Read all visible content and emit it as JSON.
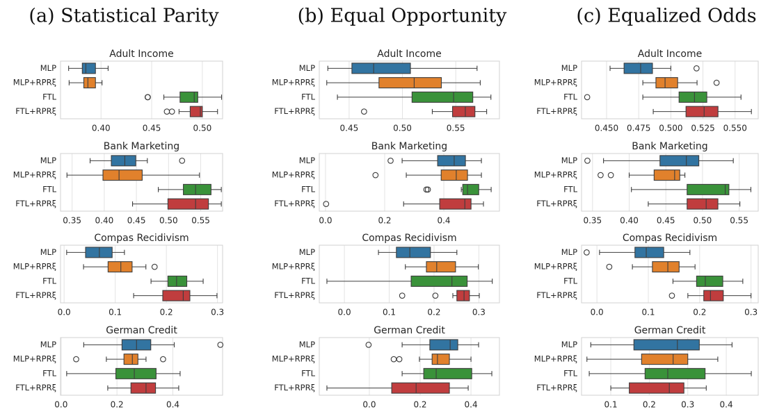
{
  "column_titles": [
    "(a) Statistical Parity",
    "(b) Equal Opportunity",
    "(c) Equalized Odds"
  ],
  "chart_data": [
    {
      "type": "box",
      "column": 0,
      "title": "Adult Income",
      "categories": [
        "MLP",
        "MLP+RPRξ",
        "FTL",
        "FTL+RPRξ"
      ],
      "colors": [
        "#3274a1",
        "#e1812c",
        "#3a923a",
        "#c03d3e"
      ],
      "grid": true,
      "xlim": [
        0.36,
        0.52
      ],
      "xticks": [
        {
          "value": 0.4,
          "label": "0.40"
        },
        0.45,
        {
          "value": 0.5,
          "label": "0.50"
        }
      ],
      "boxes": [
        {
          "whislo": 0.368,
          "q1": 0.3815,
          "med": 0.385,
          "q3": 0.3945,
          "whishi": 0.407,
          "fliers": []
        },
        {
          "whislo": 0.3685,
          "q1": 0.383,
          "med": 0.387,
          "q3": 0.3945,
          "whishi": 0.401,
          "fliers": []
        },
        {
          "whislo": 0.462,
          "q1": 0.478,
          "med": 0.492,
          "q3": 0.4955,
          "whishi": 0.519,
          "fliers": [
            0.446,
            0.4462
          ]
        },
        {
          "whislo": 0.477,
          "q1": 0.488,
          "med": 0.498,
          "q3": 0.5,
          "whishi": 0.515,
          "fliers": [
            0.465,
            0.47
          ]
        }
      ]
    },
    {
      "type": "box",
      "column": 0,
      "title": "Bank Marketing",
      "categories": [
        "MLP",
        "MLP+RPRξ",
        "FTL",
        "FTL+RPRξ"
      ],
      "colors": [
        "#3274a1",
        "#e1812c",
        "#3a923a",
        "#c03d3e"
      ],
      "grid": true,
      "xlim": [
        0.332,
        0.584
      ],
      "xticks": [
        0.35,
        {
          "value": 0.4,
          "label": "0.40"
        },
        0.45,
        {
          "value": 0.5,
          "label": "0.50"
        },
        0.55
      ],
      "boxes": [
        {
          "whislo": 0.378,
          "q1": 0.411,
          "med": 0.432,
          "q3": 0.449,
          "whishi": 0.467,
          "fliers": [
            0.521
          ]
        },
        {
          "whislo": 0.342,
          "q1": 0.398,
          "med": 0.423,
          "q3": 0.459,
          "whishi": 0.548,
          "fliers": []
        },
        {
          "whislo": 0.484,
          "q1": 0.523,
          "med": 0.542,
          "q3": 0.566,
          "whishi": 0.582,
          "fliers": []
        },
        {
          "whislo": 0.444,
          "q1": 0.499,
          "med": 0.542,
          "q3": 0.562,
          "whishi": 0.582,
          "fliers": []
        }
      ]
    },
    {
      "type": "box",
      "column": 0,
      "title": "Compas Recidivism",
      "categories": [
        "MLP",
        "MLP+RPRξ",
        "FTL",
        "FTL+RPRξ"
      ],
      "colors": [
        "#3274a1",
        "#e1812c",
        "#3a923a",
        "#c03d3e"
      ],
      "grid": true,
      "xlim": [
        -0.007,
        0.31
      ],
      "xticks": [
        {
          "value": 0,
          "label": "0.0"
        },
        0.1,
        0.2,
        0.3
      ],
      "boxes": [
        {
          "whislo": 0.005,
          "q1": 0.042,
          "med": 0.069,
          "q3": 0.094,
          "whishi": 0.118,
          "fliers": []
        },
        {
          "whislo": 0.038,
          "q1": 0.086,
          "med": 0.111,
          "q3": 0.133,
          "whishi": 0.16,
          "fliers": [
            0.177
          ]
        },
        {
          "whislo": 0.17,
          "q1": 0.203,
          "med": 0.22,
          "q3": 0.24,
          "whishi": 0.272,
          "fliers": []
        },
        {
          "whislo": 0.136,
          "q1": 0.193,
          "med": 0.233,
          "q3": 0.246,
          "whishi": 0.299,
          "fliers": []
        }
      ]
    },
    {
      "type": "box",
      "column": 0,
      "title": "German Credit",
      "categories": [
        "MLP",
        "MLP+RPRξ",
        "FTL",
        "FTL+RPRξ"
      ],
      "colors": [
        "#3274a1",
        "#e1812c",
        "#3a923a",
        "#c03d3e"
      ],
      "grid": true,
      "xlim": [
        -0.002,
        0.578
      ],
      "xticks": [
        {
          "value": 0,
          "label": "0.0"
        },
        0.2,
        0.4
      ],
      "boxes": [
        {
          "whislo": 0.081,
          "q1": 0.218,
          "med": 0.27,
          "q3": 0.321,
          "whishi": 0.405,
          "fliers": [
            0.57
          ]
        },
        {
          "whislo": 0.162,
          "q1": 0.225,
          "med": 0.255,
          "q3": 0.275,
          "whishi": 0.304,
          "fliers": [
            0.054,
            0.365
          ]
        },
        {
          "whislo": 0.02,
          "q1": 0.196,
          "med": 0.262,
          "q3": 0.34,
          "whishi": 0.426,
          "fliers": []
        },
        {
          "whislo": 0.167,
          "q1": 0.25,
          "med": 0.304,
          "q3": 0.338,
          "whishi": 0.421,
          "fliers": []
        }
      ]
    },
    {
      "type": "box",
      "column": 1,
      "title": "Adult Income",
      "categories": [
        "MLP",
        "MLP+RPRξ",
        "FTL",
        "FTL+RPRξ"
      ],
      "colors": [
        "#3274a1",
        "#e1812c",
        "#3a923a",
        "#c03d3e"
      ],
      "grid": true,
      "xlim": [
        0.422,
        0.591
      ],
      "xticks": [
        0.45,
        {
          "value": 0.5,
          "label": "0.50"
        },
        0.55
      ],
      "boxes": [
        {
          "whislo": 0.43,
          "q1": 0.4526,
          "med": 0.473,
          "q3": 0.5075,
          "whishi": 0.57,
          "fliers": []
        },
        {
          "whislo": 0.429,
          "q1": 0.478,
          "med": 0.511,
          "q3": 0.5365,
          "whishi": 0.573,
          "fliers": []
        },
        {
          "whislo": 0.439,
          "q1": 0.509,
          "med": 0.548,
          "q3": 0.566,
          "whishi": 0.583,
          "fliers": []
        },
        {
          "whislo": 0.528,
          "q1": 0.547,
          "med": 0.559,
          "q3": 0.568,
          "whishi": 0.579,
          "fliers": [
            0.464
          ]
        }
      ]
    },
    {
      "type": "box",
      "column": 1,
      "title": "Bank Marketing",
      "categories": [
        "MLP",
        "MLP+RPRξ",
        "FTL",
        "FTL+RPRξ"
      ],
      "colors": [
        "#3274a1",
        "#e1812c",
        "#3a923a",
        "#c03d3e"
      ],
      "grid": true,
      "xlim": [
        -0.021,
        0.588
      ],
      "xticks": [
        {
          "value": 0,
          "label": "0.0"
        },
        0.2,
        0.4
      ],
      "boxes": [
        {
          "whislo": 0.259,
          "q1": 0.379,
          "med": 0.435,
          "q3": 0.473,
          "whishi": 0.527,
          "fliers": [
            0.22
          ]
        },
        {
          "whislo": 0.273,
          "q1": 0.391,
          "med": 0.442,
          "q3": 0.48,
          "whishi": 0.527,
          "fliers": [
            0.169
          ]
        },
        {
          "whislo": 0.459,
          "q1": 0.464,
          "med": 0.48,
          "q3": 0.518,
          "whishi": 0.56,
          "fliers": [
            0.341,
            0.346
          ]
        },
        {
          "whislo": 0.264,
          "q1": 0.386,
          "med": 0.471,
          "q3": 0.492,
          "whishi": 0.534,
          "fliers": [
            0.002
          ]
        }
      ]
    },
    {
      "type": "box",
      "column": 1,
      "title": "Compas Recidivism",
      "categories": [
        "MLP",
        "MLP+RPRξ",
        "FTL",
        "FTL+RPRξ"
      ],
      "colors": [
        "#3274a1",
        "#e1812c",
        "#3a923a",
        "#c03d3e"
      ],
      "grid": true,
      "xlim": [
        -0.056,
        0.346
      ],
      "xticks": [
        {
          "value": 0,
          "label": "0.0"
        },
        0.1,
        0.2,
        0.3
      ],
      "boxes": [
        {
          "whislo": 0.076,
          "q1": 0.116,
          "med": 0.146,
          "q3": 0.192,
          "whishi": 0.251,
          "fliers": []
        },
        {
          "whislo": 0.136,
          "q1": 0.183,
          "med": 0.206,
          "q3": 0.248,
          "whishi": 0.299,
          "fliers": []
        },
        {
          "whislo": -0.039,
          "q1": 0.149,
          "med": 0.24,
          "q3": 0.274,
          "whishi": 0.33,
          "fliers": []
        },
        {
          "whislo": 0.242,
          "q1": 0.251,
          "med": 0.267,
          "q3": 0.279,
          "whishi": 0.301,
          "fliers": [
            0.129,
            0.203
          ]
        }
      ]
    },
    {
      "type": "box",
      "column": 1,
      "title": "German Credit",
      "categories": [
        "MLP",
        "MLP+RPRξ",
        "FTL",
        "FTL+RPRξ"
      ],
      "colors": [
        "#3274a1",
        "#e1812c",
        "#3a923a",
        "#c03d3e"
      ],
      "grid": true,
      "xlim": [
        -0.197,
        0.512
      ],
      "xticks": [
        {
          "value": 0,
          "label": "0.0"
        },
        0.2,
        0.4
      ],
      "boxes": [
        {
          "whislo": 0.129,
          "q1": 0.238,
          "med": 0.318,
          "q3": 0.348,
          "whishi": 0.43,
          "fliers": [
            -0.003
          ]
        },
        {
          "whislo": 0.197,
          "q1": 0.247,
          "med": 0.268,
          "q3": 0.315,
          "whishi": 0.4,
          "fliers": [
            0.096,
            0.118
          ]
        },
        {
          "whislo": 0.129,
          "q1": 0.214,
          "med": 0.263,
          "q3": 0.403,
          "whishi": 0.482,
          "fliers": []
        },
        {
          "whislo": -0.167,
          "q1": 0.088,
          "med": 0.184,
          "q3": 0.315,
          "whishi": 0.389,
          "fliers": []
        }
      ]
    },
    {
      "type": "box",
      "column": 2,
      "title": "Adult Income",
      "categories": [
        "MLP",
        "MLP+RPRξ",
        "FTL",
        "FTL+RPRξ"
      ],
      "colors": [
        "#3274a1",
        "#e1812c",
        "#3a923a",
        "#c03d3e"
      ],
      "grid": true,
      "xlim": [
        0.4305,
        0.568
      ],
      "xticks": [
        {
          "value": 0.45,
          "label": "0.450"
        },
        0.475,
        {
          "value": 0.5,
          "label": "0.500"
        },
        0.525,
        {
          "value": 0.55,
          "label": "0.550"
        }
      ],
      "boxes": [
        {
          "whislo": 0.4527,
          "q1": 0.4636,
          "med": 0.4765,
          "q3": 0.4857,
          "whishi": 0.5,
          "fliers": [
            0.52
          ]
        },
        {
          "whislo": 0.4782,
          "q1": 0.4884,
          "med": 0.4955,
          "q3": 0.5053,
          "whishi": 0.5204,
          "fliers": [
            0.5356
          ]
        },
        {
          "whislo": 0.4782,
          "q1": 0.5064,
          "med": 0.5184,
          "q3": 0.528,
          "whishi": 0.5546,
          "fliers": [
            0.4349
          ]
        },
        {
          "whislo": 0.4863,
          "q1": 0.5118,
          "med": 0.5259,
          "q3": 0.5367,
          "whishi": 0.5627,
          "fliers": []
        }
      ]
    },
    {
      "type": "box",
      "column": 2,
      "title": "Bank Marketing",
      "categories": [
        "MLP",
        "MLP+RPRξ",
        "FTL",
        "FTL+RPRξ"
      ],
      "colors": [
        "#3274a1",
        "#e1812c",
        "#3a923a",
        "#c03d3e"
      ],
      "grid": true,
      "xlim": [
        0.335,
        0.576
      ],
      "xticks": [
        0.35,
        {
          "value": 0.4,
          "label": "0.40"
        },
        0.45,
        {
          "value": 0.5,
          "label": "0.50"
        },
        0.55
      ],
      "boxes": [
        {
          "whislo": 0.365,
          "q1": 0.442,
          "med": 0.478,
          "q3": 0.495,
          "whishi": 0.542,
          "fliers": [
            0.343
          ]
        },
        {
          "whislo": 0.4,
          "q1": 0.434,
          "med": 0.462,
          "q3": 0.469,
          "whishi": 0.476,
          "fliers": [
            0.361,
            0.375
          ]
        },
        {
          "whislo": 0.403,
          "q1": 0.479,
          "med": 0.531,
          "q3": 0.536,
          "whishi": 0.566,
          "fliers": []
        },
        {
          "whislo": 0.426,
          "q1": 0.479,
          "med": 0.505,
          "q3": 0.521,
          "whishi": 0.551,
          "fliers": []
        }
      ]
    },
    {
      "type": "box",
      "column": 2,
      "title": "Compas Recidivism",
      "categories": [
        "MLP",
        "MLP+RPRξ",
        "FTL",
        "FTL+RPRξ"
      ],
      "colors": [
        "#3274a1",
        "#e1812c",
        "#3a923a",
        "#c03d3e"
      ],
      "grid": true,
      "xlim": [
        -0.03,
        0.314
      ],
      "xticks": [
        {
          "value": 0,
          "label": "0.0"
        },
        0.1,
        0.2,
        0.3
      ],
      "boxes": [
        {
          "whislo": 0.005,
          "q1": 0.074,
          "med": 0.096,
          "q3": 0.13,
          "whishi": 0.181,
          "fliers": [
            -0.02
          ]
        },
        {
          "whislo": 0.069,
          "q1": 0.108,
          "med": 0.138,
          "q3": 0.16,
          "whishi": 0.191,
          "fliers": [
            0.024
          ]
        },
        {
          "whislo": 0.148,
          "q1": 0.194,
          "med": 0.211,
          "q3": 0.245,
          "whishi": 0.284,
          "fliers": []
        },
        {
          "whislo": 0.177,
          "q1": 0.208,
          "med": 0.221,
          "q3": 0.246,
          "whishi": 0.3,
          "fliers": [
            0.146
          ]
        }
      ]
    },
    {
      "type": "box",
      "column": 2,
      "title": "German Credit",
      "categories": [
        "MLP",
        "MLP+RPRξ",
        "FTL",
        "FTL+RPRξ"
      ],
      "colors": [
        "#3274a1",
        "#e1812c",
        "#3a923a",
        "#c03d3e"
      ],
      "grid": true,
      "xlim": [
        0.024,
        0.483
      ],
      "xticks": [
        0.1,
        0.2,
        0.3,
        0.4
      ],
      "boxes": [
        {
          "whislo": 0.048,
          "q1": 0.16,
          "med": 0.273,
          "q3": 0.33,
          "whishi": 0.415,
          "fliers": []
        },
        {
          "whislo": 0.038,
          "q1": 0.18,
          "med": 0.262,
          "q3": 0.3,
          "whishi": 0.378,
          "fliers": []
        },
        {
          "whislo": 0.044,
          "q1": 0.189,
          "med": 0.248,
          "q3": 0.345,
          "whishi": 0.465,
          "fliers": []
        },
        {
          "whislo": 0.1,
          "q1": 0.148,
          "med": 0.252,
          "q3": 0.29,
          "whishi": 0.348,
          "fliers": []
        }
      ]
    }
  ]
}
